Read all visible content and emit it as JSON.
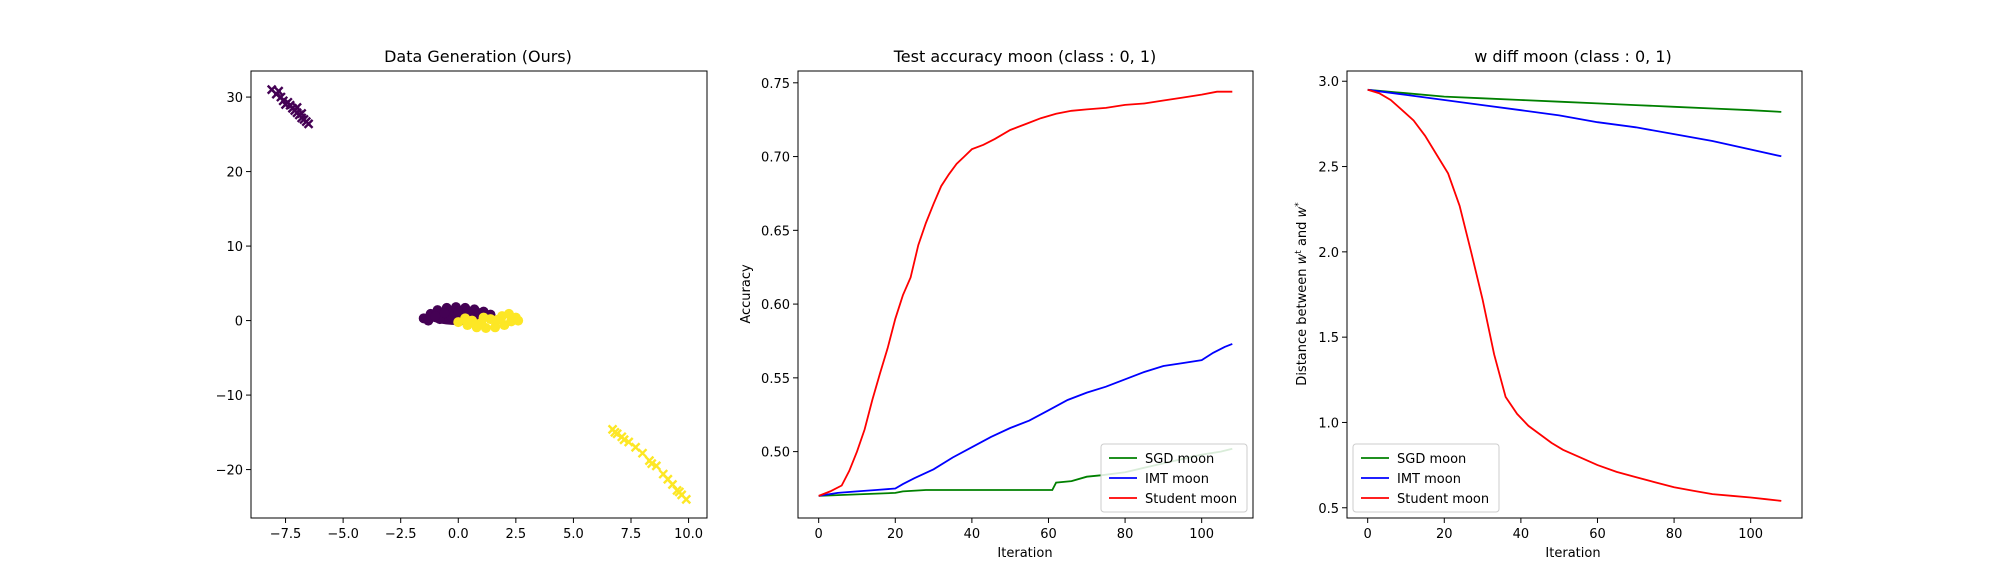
{
  "chart_data": [
    {
      "type": "scatter",
      "title": "Data Generation (Ours)",
      "xlabel": "",
      "ylabel": "",
      "xlim": [
        -9.0,
        10.8
      ],
      "ylim": [
        -26.5,
        33.5
      ],
      "xticks": [
        -7.5,
        -5.0,
        -2.5,
        0.0,
        2.5,
        5.0,
        7.5,
        10.0
      ],
      "xtick_labels": [
        "−7.5",
        "−5.0",
        "−2.5",
        "0.0",
        "2.5",
        "5.0",
        "7.5",
        "10.0"
      ],
      "yticks": [
        30,
        20,
        10,
        0,
        -10,
        -20
      ],
      "ytick_labels": [
        "30",
        "20",
        "10",
        "0",
        "−10",
        "−20"
      ],
      "grid": false,
      "series": [
        {
          "class": 0,
          "color": "#440154",
          "marker": "circle",
          "center_x": 0.0,
          "center_y": 0.6,
          "rx": 1.4,
          "ry": 1.2,
          "points": [
            [
              -1.5,
              0.3
            ],
            [
              -1.2,
              0.9
            ],
            [
              -0.9,
              1.4
            ],
            [
              -0.5,
              1.7
            ],
            [
              -0.1,
              1.8
            ],
            [
              0.3,
              1.7
            ],
            [
              0.7,
              1.5
            ],
            [
              1.1,
              1.2
            ],
            [
              1.4,
              0.8
            ],
            [
              -1.3,
              0.0
            ],
            [
              -0.8,
              0.2
            ],
            [
              -0.3,
              0.5
            ],
            [
              0.2,
              0.9
            ],
            [
              0.6,
              0.4
            ],
            [
              1.0,
              0.7
            ],
            [
              -0.6,
              1.0
            ],
            [
              0.0,
              1.2
            ],
            [
              0.4,
              1.3
            ],
            [
              -1.0,
              0.6
            ],
            [
              0.9,
              1.0
            ]
          ]
        },
        {
          "class": 0,
          "color": "#440154",
          "marker": "x",
          "points": [
            [
              -8.1,
              31.0
            ],
            [
              -7.9,
              30.4
            ],
            [
              -7.7,
              30.0
            ],
            [
              -7.6,
              29.5
            ],
            [
              -7.4,
              29.3
            ],
            [
              -7.3,
              28.9
            ],
            [
              -7.2,
              28.5
            ],
            [
              -7.1,
              28.2
            ],
            [
              -7.0,
              27.9
            ],
            [
              -6.9,
              27.6
            ],
            [
              -6.8,
              27.2
            ],
            [
              -6.7,
              27.0
            ],
            [
              -6.6,
              26.7
            ],
            [
              -6.5,
              26.4
            ],
            [
              -7.5,
              29.0
            ],
            [
              -7.0,
              28.6
            ],
            [
              -6.8,
              27.8
            ],
            [
              -7.8,
              30.8
            ]
          ]
        },
        {
          "class": 1,
          "color": "#fde725",
          "marker": "circle",
          "points": [
            [
              0.0,
              -0.2
            ],
            [
              0.4,
              -0.6
            ],
            [
              0.8,
              -0.9
            ],
            [
              1.2,
              -1.0
            ],
            [
              1.6,
              -0.9
            ],
            [
              2.0,
              -0.6
            ],
            [
              2.3,
              -0.1
            ],
            [
              2.5,
              0.4
            ],
            [
              1.9,
              0.6
            ],
            [
              1.4,
              0.2
            ],
            [
              1.0,
              -0.3
            ],
            [
              0.6,
              0.0
            ],
            [
              2.2,
              0.9
            ],
            [
              1.7,
              0.1
            ],
            [
              0.3,
              0.3
            ],
            [
              2.6,
              0.0
            ],
            [
              1.1,
              0.4
            ],
            [
              0.8,
              -0.5
            ]
          ]
        },
        {
          "class": 1,
          "color": "#fde725",
          "marker": "x",
          "points": [
            [
              6.7,
              -14.6
            ],
            [
              6.9,
              -15.2
            ],
            [
              7.1,
              -15.6
            ],
            [
              7.2,
              -16.0
            ],
            [
              7.4,
              -16.3
            ],
            [
              7.7,
              -17.0
            ],
            [
              8.0,
              -17.8
            ],
            [
              8.3,
              -18.8
            ],
            [
              8.6,
              -19.5
            ],
            [
              8.9,
              -20.6
            ],
            [
              9.1,
              -21.3
            ],
            [
              9.3,
              -22.0
            ],
            [
              9.5,
              -22.8
            ],
            [
              9.7,
              -23.4
            ],
            [
              9.9,
              -24.0
            ],
            [
              8.4,
              -19.2
            ],
            [
              6.8,
              -15.0
            ],
            [
              9.6,
              -23.0
            ]
          ]
        }
      ]
    },
    {
      "type": "line",
      "title": "Test accuracy moon (class : 0, 1)",
      "xlabel": "Iteration",
      "ylabel": "Accuracy",
      "xlim": [
        -5.4,
        113.4
      ],
      "ylim": [
        0.455,
        0.758
      ],
      "xticks": [
        0,
        20,
        40,
        60,
        80,
        100
      ],
      "xtick_labels": [
        "0",
        "20",
        "40",
        "60",
        "80",
        "100"
      ],
      "yticks": [
        0.5,
        0.55,
        0.6,
        0.65,
        0.7,
        0.75
      ],
      "ytick_labels": [
        "0.50",
        "0.55",
        "0.60",
        "0.65",
        "0.70",
        "0.75"
      ],
      "grid": false,
      "legend": "lower right",
      "series": [
        {
          "name": "SGD moon",
          "color": "#008000",
          "x": [
            0,
            10,
            20,
            22,
            28,
            40,
            50,
            61,
            62,
            66,
            70,
            74,
            80,
            85,
            90,
            95,
            100,
            105,
            108
          ],
          "y": [
            0.47,
            0.471,
            0.472,
            0.473,
            0.474,
            0.474,
            0.474,
            0.474,
            0.479,
            0.48,
            0.483,
            0.484,
            0.486,
            0.489,
            0.492,
            0.495,
            0.498,
            0.5,
            0.502
          ]
        },
        {
          "name": "IMT moon",
          "color": "#0000ff",
          "x": [
            0,
            5,
            10,
            15,
            20,
            22,
            25,
            30,
            35,
            40,
            45,
            50,
            55,
            60,
            65,
            70,
            75,
            80,
            85,
            90,
            95,
            100,
            103,
            106,
            108
          ],
          "y": [
            0.47,
            0.472,
            0.473,
            0.474,
            0.475,
            0.478,
            0.482,
            0.488,
            0.496,
            0.503,
            0.51,
            0.516,
            0.521,
            0.528,
            0.535,
            0.54,
            0.544,
            0.549,
            0.554,
            0.558,
            0.56,
            0.562,
            0.567,
            0.571,
            0.573
          ]
        },
        {
          "name": "Student moon",
          "color": "#ff0000",
          "x": [
            0,
            3,
            6,
            8,
            10,
            12,
            14,
            16,
            18,
            20,
            22,
            24,
            26,
            28,
            30,
            32,
            34,
            36,
            38,
            40,
            43,
            46,
            50,
            54,
            58,
            62,
            66,
            70,
            75,
            80,
            85,
            90,
            95,
            100,
            104,
            108
          ],
          "y": [
            0.47,
            0.473,
            0.477,
            0.487,
            0.5,
            0.515,
            0.535,
            0.553,
            0.57,
            0.59,
            0.606,
            0.618,
            0.64,
            0.655,
            0.668,
            0.68,
            0.688,
            0.695,
            0.7,
            0.705,
            0.708,
            0.712,
            0.718,
            0.722,
            0.726,
            0.729,
            0.731,
            0.732,
            0.733,
            0.735,
            0.736,
            0.738,
            0.74,
            0.742,
            0.744,
            0.744
          ]
        }
      ]
    },
    {
      "type": "line",
      "title": "w diff moon (class : 0, 1)",
      "xlabel": "Iteration",
      "ylabel": "Distance between w^t and w^*",
      "ylabel_parts": [
        "Distance between ",
        "w",
        "t",
        " and ",
        "w",
        "*"
      ],
      "xlim": [
        -5.4,
        113.4
      ],
      "ylim": [
        0.44,
        3.06
      ],
      "xticks": [
        0,
        20,
        40,
        60,
        80,
        100
      ],
      "xtick_labels": [
        "0",
        "20",
        "40",
        "60",
        "80",
        "100"
      ],
      "yticks": [
        0.5,
        1.0,
        1.5,
        2.0,
        2.5,
        3.0
      ],
      "ytick_labels": [
        "0.5",
        "1.0",
        "1.5",
        "2.0",
        "2.5",
        "3.0"
      ],
      "grid": false,
      "legend": "lower left",
      "series": [
        {
          "name": "SGD moon",
          "color": "#008000",
          "x": [
            0,
            10,
            20,
            30,
            40,
            50,
            60,
            70,
            80,
            90,
            100,
            108
          ],
          "y": [
            2.95,
            2.93,
            2.91,
            2.9,
            2.89,
            2.88,
            2.87,
            2.86,
            2.85,
            2.84,
            2.83,
            2.82
          ]
        },
        {
          "name": "IMT moon",
          "color": "#0000ff",
          "x": [
            0,
            10,
            20,
            30,
            40,
            50,
            60,
            70,
            80,
            90,
            100,
            108
          ],
          "y": [
            2.95,
            2.92,
            2.89,
            2.86,
            2.83,
            2.8,
            2.76,
            2.73,
            2.69,
            2.65,
            2.6,
            2.56
          ]
        },
        {
          "name": "Student moon",
          "color": "#ff0000",
          "x": [
            0,
            3,
            6,
            9,
            12,
            15,
            18,
            21,
            24,
            27,
            30,
            33,
            36,
            39,
            42,
            45,
            48,
            51,
            55,
            60,
            65,
            70,
            75,
            80,
            85,
            90,
            95,
            100,
            104,
            108
          ],
          "y": [
            2.95,
            2.93,
            2.89,
            2.83,
            2.77,
            2.68,
            2.57,
            2.46,
            2.27,
            2.0,
            1.72,
            1.4,
            1.15,
            1.05,
            0.98,
            0.93,
            0.88,
            0.84,
            0.8,
            0.75,
            0.71,
            0.68,
            0.65,
            0.62,
            0.6,
            0.58,
            0.57,
            0.56,
            0.55,
            0.54
          ]
        }
      ]
    }
  ]
}
